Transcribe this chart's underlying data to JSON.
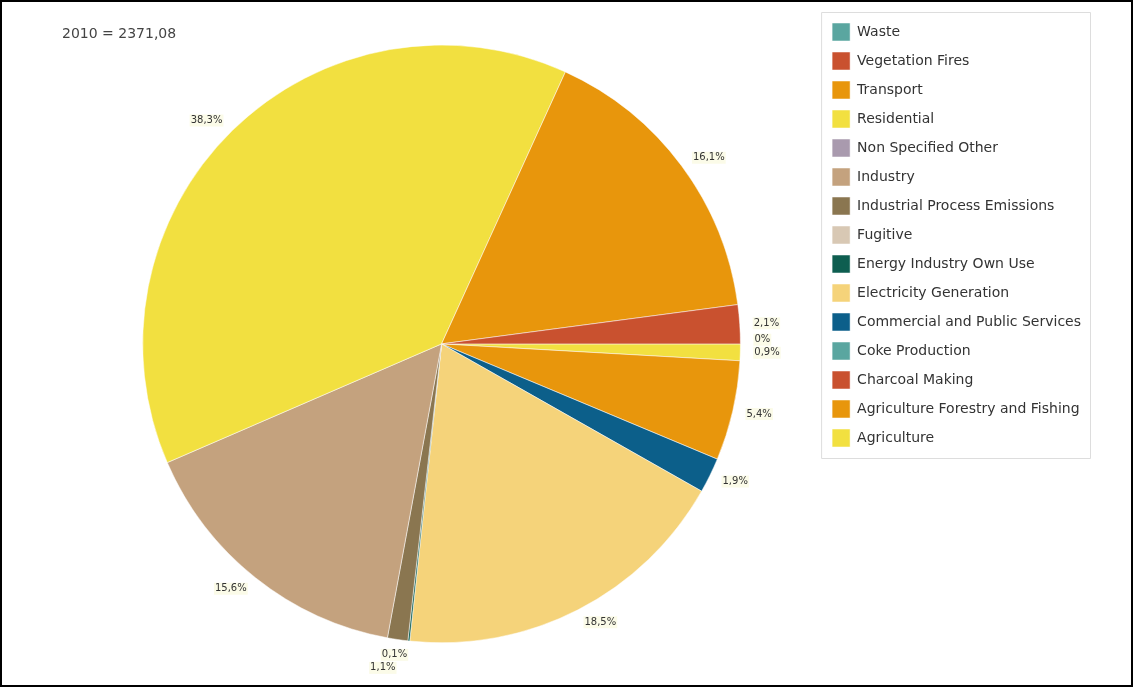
{
  "chart_data": {
    "type": "pie",
    "title": "2010 = 2371,08",
    "categories": [
      "Waste",
      "Vegetation Fires",
      "Transport",
      "Residential",
      "Non Specified Other",
      "Industry",
      "Industrial Process Emissions",
      "Fugitive",
      "Energy Industry Own Use",
      "Electricity Generation",
      "Commercial and Public Services",
      "Coke Production",
      "Charcoal Making",
      "Agriculture Forestry and Fishing",
      "Agriculture"
    ],
    "values": [
      0,
      2.1,
      16.1,
      38.3,
      0,
      15.6,
      1.1,
      0,
      0.1,
      18.5,
      1.9,
      0,
      0,
      5.4,
      0.9
    ],
    "value_labels": [
      "0%",
      "2,1%",
      "16,1%",
      "38,3%",
      null,
      "15,6%",
      "1,1%",
      null,
      "0,1%",
      "18,5%",
      "1,9%",
      null,
      null,
      "5,4%",
      "0,9%"
    ],
    "colors": [
      "#5aa6a0",
      "#c9512f",
      "#e8960c",
      "#f2e040",
      "#a99aae",
      "#c4a27e",
      "#8a7650",
      "#d8c8b4",
      "#0e5e50",
      "#f5d37a",
      "#0c5f8a",
      "#5aa6a0",
      "#c9512f",
      "#e8960c",
      "#f2e040"
    ],
    "legend": "right"
  }
}
